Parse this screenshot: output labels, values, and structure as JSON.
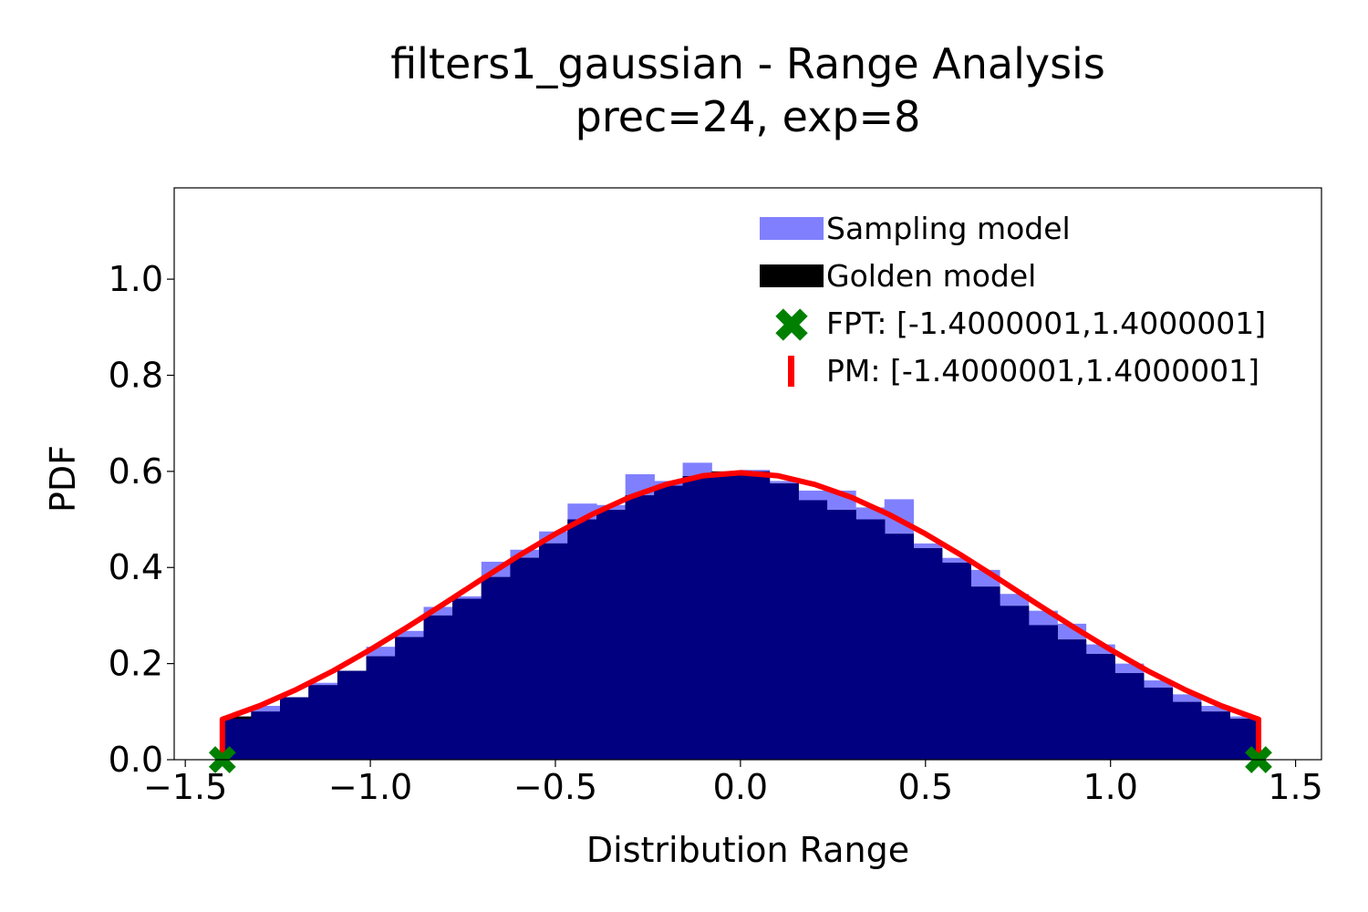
{
  "chart_data": {
    "type": "bar",
    "title": "filters1_gaussian - Range Analysis",
    "subtitle": "prec=24, exp=8",
    "xlabel": "Distribution Range",
    "ylabel": "PDF",
    "xlim": [
      -1.53,
      1.57
    ],
    "ylim": [
      0.0,
      1.19
    ],
    "xticks": [
      -1.5,
      -1.0,
      -0.5,
      0.0,
      0.5,
      1.0,
      1.5
    ],
    "xtick_labels": [
      "−1.5",
      "−1.0",
      "−0.5",
      "0.0",
      "0.5",
      "1.0",
      "1.5"
    ],
    "yticks": [
      0.0,
      0.2,
      0.4,
      0.6,
      0.8,
      1.0
    ],
    "ytick_labels": [
      "0.0",
      "0.2",
      "0.4",
      "0.6",
      "0.8",
      "1.0"
    ],
    "grid": false,
    "legend_position": "top-right",
    "bin_edges": [
      -1.4,
      -1.322,
      -1.244,
      -1.167,
      -1.089,
      -1.011,
      -0.933,
      -0.856,
      -0.778,
      -0.7,
      -0.622,
      -0.544,
      -0.467,
      -0.389,
      -0.311,
      -0.233,
      -0.156,
      -0.078,
      0.0,
      0.078,
      0.156,
      0.233,
      0.311,
      0.389,
      0.467,
      0.544,
      0.622,
      0.7,
      0.778,
      0.856,
      0.933,
      1.011,
      1.089,
      1.167,
      1.244,
      1.322,
      1.4
    ],
    "series": [
      {
        "name": "Sampling model",
        "kind": "histogram",
        "color": "#8080ff",
        "values": [
          0.085,
          0.112,
          0.13,
          0.16,
          0.185,
          0.235,
          0.268,
          0.318,
          0.34,
          0.412,
          0.437,
          0.475,
          0.533,
          0.53,
          0.594,
          0.58,
          0.618,
          0.595,
          0.603,
          0.58,
          0.56,
          0.56,
          0.525,
          0.542,
          0.45,
          0.42,
          0.395,
          0.345,
          0.31,
          0.283,
          0.24,
          0.2,
          0.165,
          0.136,
          0.112,
          0.09
        ]
      },
      {
        "name": "Golden model",
        "kind": "histogram",
        "color": "#000000",
        "values": [
          0.09,
          0.1,
          0.13,
          0.155,
          0.185,
          0.215,
          0.255,
          0.3,
          0.335,
          0.38,
          0.42,
          0.45,
          0.5,
          0.52,
          0.55,
          0.57,
          0.59,
          0.6,
          0.6,
          0.575,
          0.54,
          0.52,
          0.5,
          0.47,
          0.44,
          0.41,
          0.36,
          0.32,
          0.28,
          0.25,
          0.22,
          0.18,
          0.15,
          0.12,
          0.1,
          0.085
        ]
      },
      {
        "name": "PM: [-1.4000001,1.4000001]",
        "kind": "line",
        "color": "#ff0000",
        "x": [
          -1.4,
          -1.4,
          -1.3,
          -1.2,
          -1.1,
          -1.0,
          -0.9,
          -0.8,
          -0.7,
          -0.6,
          -0.5,
          -0.4,
          -0.3,
          -0.2,
          -0.1,
          0.0,
          0.1,
          0.2,
          0.3,
          0.4,
          0.5,
          0.6,
          0.7,
          0.8,
          0.9,
          1.0,
          1.1,
          1.2,
          1.3,
          1.4,
          1.4
        ],
        "y": [
          0.0,
          0.084,
          0.112,
          0.146,
          0.185,
          0.229,
          0.276,
          0.325,
          0.375,
          0.424,
          0.47,
          0.511,
          0.546,
          0.573,
          0.591,
          0.597,
          0.591,
          0.573,
          0.546,
          0.511,
          0.47,
          0.424,
          0.375,
          0.325,
          0.276,
          0.229,
          0.185,
          0.146,
          0.112,
          0.084,
          0.0
        ]
      },
      {
        "name": "FPT: [-1.4000001,1.4000001]",
        "kind": "scatter",
        "color": "#008000",
        "x": [
          -1.4000001,
          1.4000001
        ],
        "y": [
          0.0,
          0.0
        ]
      }
    ]
  }
}
